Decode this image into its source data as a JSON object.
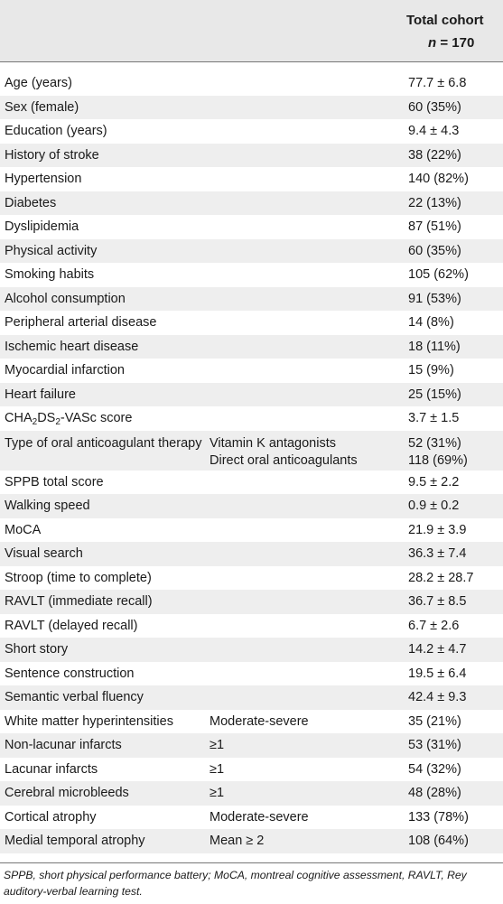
{
  "header": {
    "col3_line1": "Total cohort",
    "col3_n_label": "n",
    "col3_n_value": "= 170"
  },
  "rows": [
    {
      "label": "Age (years)",
      "sub": "",
      "value": "77.7 ± 6.8"
    },
    {
      "label": "Sex (female)",
      "sub": "",
      "value": "60 (35%)"
    },
    {
      "label": "Education (years)",
      "sub": "",
      "value": "9.4 ± 4.3"
    },
    {
      "label": "History of stroke",
      "sub": "",
      "value": "38 (22%)"
    },
    {
      "label": "Hypertension",
      "sub": "",
      "value": "140 (82%)"
    },
    {
      "label": "Diabetes",
      "sub": "",
      "value": "22 (13%)"
    },
    {
      "label": "Dyslipidemia",
      "sub": "",
      "value": "87 (51%)"
    },
    {
      "label": "Physical activity",
      "sub": "",
      "value": "60 (35%)"
    },
    {
      "label": "Smoking habits",
      "sub": "",
      "value": "105 (62%)"
    },
    {
      "label": "Alcohol consumption",
      "sub": "",
      "value": "91 (53%)"
    },
    {
      "label": "Peripheral arterial disease",
      "sub": "",
      "value": "14 (8%)"
    },
    {
      "label": "Ischemic heart disease",
      "sub": "",
      "value": "18 (11%)"
    },
    {
      "label": "Myocardial infarction",
      "sub": "",
      "value": "15 (9%)"
    },
    {
      "label": "Heart failure",
      "sub": "",
      "value": "25 (15%)"
    },
    {
      "label": "CHA2DS2-VASc score",
      "sub": "",
      "value": "3.7 ± 1.5"
    },
    {
      "label": "Type of oral anticoagulant therapy",
      "sub": "Vitamin K antagonists",
      "value": "52 (31%)",
      "sub2": "Direct oral anticoagulants",
      "value2": "118 (69%)"
    },
    {
      "label": "SPPB total score",
      "sub": "",
      "value": "9.5 ± 2.2"
    },
    {
      "label": "Walking speed",
      "sub": "",
      "value": "0.9 ± 0.2"
    },
    {
      "label": "MoCA",
      "sub": "",
      "value": "21.9 ± 3.9"
    },
    {
      "label": "Visual search",
      "sub": "",
      "value": "36.3 ± 7.4"
    },
    {
      "label": "Stroop (time to complete)",
      "sub": "",
      "value": "28.2 ± 28.7"
    },
    {
      "label": "RAVLT (immediate recall)",
      "sub": "",
      "value": "36.7 ± 8.5"
    },
    {
      "label": "RAVLT (delayed recall)",
      "sub": "",
      "value": "6.7 ± 2.6"
    },
    {
      "label": "Short story",
      "sub": "",
      "value": "14.2 ± 4.7"
    },
    {
      "label": "Sentence construction",
      "sub": "",
      "value": "19.5 ± 6.4"
    },
    {
      "label": "Semantic verbal fluency",
      "sub": "",
      "value": "42.4 ± 9.3"
    },
    {
      "label": "White matter hyperintensities",
      "sub": "Moderate-severe",
      "value": "35 (21%)"
    },
    {
      "label": "Non-lacunar infarcts",
      "sub": "≥1",
      "value": "53 (31%)"
    },
    {
      "label": "Lacunar infarcts",
      "sub": "≥1",
      "value": "54 (32%)"
    },
    {
      "label": "Cerebral microbleeds",
      "sub": "≥1",
      "value": "48 (28%)"
    },
    {
      "label": "Cortical atrophy",
      "sub": "Moderate-severe",
      "value": "133 (78%)"
    },
    {
      "label": "Medial temporal atrophy",
      "sub": "Mean ≥ 2",
      "value": "108 (64%)"
    }
  ],
  "footnote": "SPPB, short physical performance battery; MoCA, montreal cognitive assessment, RAVLT, Rey auditory-verbal learning test."
}
